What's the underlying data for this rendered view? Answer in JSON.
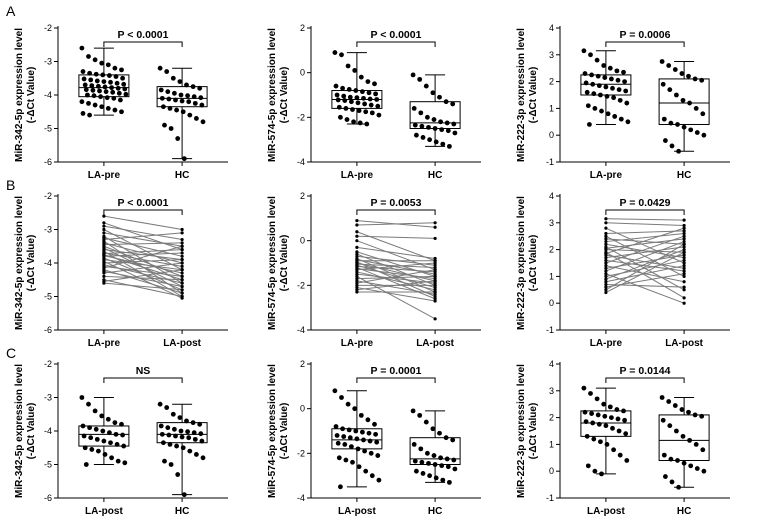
{
  "panel_labels": [
    "A",
    "B",
    "C"
  ],
  "chart_data": [
    {
      "type": "box",
      "row": 0,
      "col": 0,
      "ylabel": [
        "MiR-342-5p expression level",
        "(-ΔCt Value)"
      ],
      "ylim": [
        -6,
        -2
      ],
      "yticks": [
        -6,
        -5,
        -4,
        -3,
        -2
      ],
      "categories": [
        "LA-pre",
        "HC"
      ],
      "significance": "P < 0.0001",
      "series": [
        {
          "box": {
            "min": -4.6,
            "q1": -4.05,
            "median": -3.78,
            "q3": -3.4,
            "max": -2.6
          },
          "points": [
            -2.6,
            -2.85,
            -2.95,
            -3.05,
            -3.1,
            -3.2,
            -3.25,
            -3.3,
            -3.35,
            -3.38,
            -3.4,
            -3.42,
            -3.45,
            -3.5,
            -3.52,
            -3.55,
            -3.58,
            -3.6,
            -3.62,
            -3.65,
            -3.68,
            -3.7,
            -3.72,
            -3.74,
            -3.76,
            -3.78,
            -3.8,
            -3.82,
            -3.84,
            -3.86,
            -3.88,
            -3.9,
            -3.92,
            -3.95,
            -3.98,
            -4.0,
            -4.02,
            -4.05,
            -4.08,
            -4.1,
            -4.15,
            -4.2,
            -4.25,
            -4.3,
            -4.35,
            -4.4,
            -4.45,
            -4.5,
            -4.55,
            -4.6
          ]
        },
        {
          "box": {
            "min": -5.9,
            "q1": -4.35,
            "median": -4.1,
            "q3": -3.75,
            "max": -3.2
          },
          "points": [
            -3.2,
            -3.3,
            -3.5,
            -3.6,
            -3.7,
            -3.75,
            -3.8,
            -3.85,
            -3.9,
            -3.95,
            -4.0,
            -4.02,
            -4.05,
            -4.08,
            -4.1,
            -4.12,
            -4.15,
            -4.18,
            -4.2,
            -4.25,
            -4.3,
            -4.35,
            -4.4,
            -4.45,
            -4.5,
            -4.6,
            -4.7,
            -4.8,
            -4.9,
            -5.0,
            -5.3,
            -5.9
          ]
        }
      ]
    },
    {
      "type": "box",
      "row": 0,
      "col": 1,
      "ylabel": [
        "MiR-574-5p expression level",
        "(-ΔCt Value)"
      ],
      "ylim": [
        -4,
        2
      ],
      "yticks": [
        -4,
        -2,
        0,
        2
      ],
      "categories": [
        "LA-pre",
        "HC"
      ],
      "significance": "P < 0.0001",
      "series": [
        {
          "box": {
            "min": -2.3,
            "q1": -1.6,
            "median": -1.2,
            "q3": -0.8,
            "max": 0.9
          },
          "points": [
            0.9,
            0.8,
            0.3,
            0.1,
            -0.2,
            -0.4,
            -0.5,
            -0.6,
            -0.7,
            -0.75,
            -0.8,
            -0.85,
            -0.9,
            -0.95,
            -1.0,
            -1.05,
            -1.1,
            -1.12,
            -1.15,
            -1.18,
            -1.2,
            -1.22,
            -1.25,
            -1.3,
            -1.35,
            -1.4,
            -1.45,
            -1.5,
            -1.55,
            -1.6,
            -1.65,
            -1.7,
            -1.75,
            -1.8,
            -1.9,
            -2.0,
            -2.1,
            -2.2,
            -2.25,
            -2.3
          ]
        },
        {
          "box": {
            "min": -3.3,
            "q1": -2.5,
            "median": -2.25,
            "q3": -1.3,
            "max": -0.1
          },
          "points": [
            -0.1,
            -0.3,
            -0.6,
            -0.9,
            -1.1,
            -1.3,
            -1.4,
            -1.6,
            -1.8,
            -2.0,
            -2.1,
            -2.2,
            -2.25,
            -2.3,
            -2.35,
            -2.4,
            -2.45,
            -2.5,
            -2.55,
            -2.6,
            -2.7,
            -2.8,
            -2.9,
            -3.0,
            -3.1,
            -3.2,
            -3.3
          ]
        }
      ]
    },
    {
      "type": "box",
      "row": 0,
      "col": 2,
      "ylabel": [
        "MiR-222-3p expression level",
        "(-ΔCt Value)"
      ],
      "ylim": [
        -1,
        4
      ],
      "yticks": [
        -1,
        0,
        1,
        2,
        3,
        4
      ],
      "categories": [
        "LA-pre",
        "HC"
      ],
      "significance": "P = 0.0006",
      "series": [
        {
          "box": {
            "min": 0.4,
            "q1": 1.5,
            "median": 1.9,
            "q3": 2.25,
            "max": 3.15
          },
          "points": [
            3.15,
            3.0,
            2.8,
            2.6,
            2.5,
            2.4,
            2.35,
            2.3,
            2.25,
            2.2,
            2.15,
            2.1,
            2.05,
            2.0,
            1.95,
            1.9,
            1.85,
            1.8,
            1.75,
            1.7,
            1.65,
            1.6,
            1.55,
            1.5,
            1.45,
            1.4,
            1.3,
            1.2,
            1.1,
            1.0,
            0.9,
            0.8,
            0.7,
            0.6,
            0.5,
            0.4
          ]
        },
        {
          "box": {
            "min": -0.6,
            "q1": 0.4,
            "median": 1.2,
            "q3": 2.1,
            "max": 2.75
          },
          "points": [
            2.75,
            2.6,
            2.45,
            2.3,
            2.2,
            2.1,
            2.05,
            1.9,
            1.7,
            1.5,
            1.3,
            1.2,
            1.0,
            0.8,
            0.6,
            0.45,
            0.4,
            0.3,
            0.2,
            0.1,
            0.0,
            -0.2,
            -0.4,
            -0.6
          ]
        }
      ]
    },
    {
      "type": "paired_line",
      "row": 1,
      "col": 0,
      "ylabel": [
        "MiR-342-5p expression level",
        "(-ΔCt Value)"
      ],
      "ylim": [
        -6,
        -2
      ],
      "yticks": [
        -6,
        -5,
        -4,
        -3,
        -2
      ],
      "categories": [
        "LA-pre",
        "LA-post"
      ],
      "significance": "P < 0.0001",
      "pairs": [
        [
          -2.6,
          -3.0
        ],
        [
          -2.8,
          -3.6
        ],
        [
          -2.9,
          -3.3
        ],
        [
          -3.0,
          -4.2
        ],
        [
          -3.1,
          -3.5
        ],
        [
          -3.2,
          -4.6
        ],
        [
          -3.25,
          -3.8
        ],
        [
          -3.3,
          -3.1
        ],
        [
          -3.35,
          -4.9
        ],
        [
          -3.4,
          -4.0
        ],
        [
          -3.45,
          -3.4
        ],
        [
          -3.5,
          -4.4
        ],
        [
          -3.55,
          -4.7
        ],
        [
          -3.6,
          -3.9
        ],
        [
          -3.65,
          -5.0
        ],
        [
          -3.7,
          -4.1
        ],
        [
          -3.72,
          -3.6
        ],
        [
          -3.75,
          -4.5
        ],
        [
          -3.78,
          -4.3
        ],
        [
          -3.8,
          -3.7
        ],
        [
          -3.85,
          -4.8
        ],
        [
          -3.9,
          -4.2
        ],
        [
          -3.95,
          -5.05
        ],
        [
          -4.0,
          -3.9
        ],
        [
          -4.05,
          -4.6
        ],
        [
          -4.1,
          -4.4
        ],
        [
          -4.15,
          -3.5
        ],
        [
          -4.2,
          -4.9
        ],
        [
          -4.25,
          -4.7
        ],
        [
          -4.3,
          -4.0
        ],
        [
          -4.4,
          -4.5
        ],
        [
          -4.5,
          -5.0
        ],
        [
          -4.55,
          -4.2
        ],
        [
          -4.6,
          -4.8
        ]
      ]
    },
    {
      "type": "paired_line",
      "row": 1,
      "col": 1,
      "ylabel": [
        "MiR-574-5p expression level",
        "(-ΔCt Value)"
      ],
      "ylim": [
        -4,
        2
      ],
      "yticks": [
        -4,
        -2,
        0,
        2
      ],
      "categories": [
        "LA-pre",
        "LA-post"
      ],
      "significance": "P = 0.0053",
      "pairs": [
        [
          0.9,
          0.6
        ],
        [
          0.7,
          0.8
        ],
        [
          0.4,
          -0.9
        ],
        [
          0.2,
          0.1
        ],
        [
          0.0,
          -1.3
        ],
        [
          -0.3,
          -0.8
        ],
        [
          -0.5,
          -1.6
        ],
        [
          -0.6,
          -2.0
        ],
        [
          -0.7,
          -1.1
        ],
        [
          -0.8,
          -2.3
        ],
        [
          -0.85,
          -1.5
        ],
        [
          -0.9,
          -0.9
        ],
        [
          -0.95,
          -2.5
        ],
        [
          -1.0,
          -1.8
        ],
        [
          -1.05,
          -1.2
        ],
        [
          -1.1,
          -2.1
        ],
        [
          -1.15,
          -1.4
        ],
        [
          -1.2,
          -2.6
        ],
        [
          -1.25,
          -1.7
        ],
        [
          -1.3,
          -1.0
        ],
        [
          -1.4,
          -2.2
        ],
        [
          -1.5,
          -1.9
        ],
        [
          -1.6,
          -3.5
        ],
        [
          -1.7,
          -1.6
        ],
        [
          -1.8,
          -2.4
        ],
        [
          -1.9,
          -1.3
        ],
        [
          -2.0,
          -2.0
        ],
        [
          -2.1,
          -2.7
        ],
        [
          -2.2,
          -1.8
        ],
        [
          -2.3,
          -2.3
        ]
      ]
    },
    {
      "type": "paired_line",
      "row": 1,
      "col": 2,
      "ylabel": [
        "MiR-222-3p expression level",
        "(-ΔCt Value)"
      ],
      "ylim": [
        -1,
        4
      ],
      "yticks": [
        -1,
        0,
        1,
        2,
        3,
        4
      ],
      "categories": [
        "LA-pre",
        "LA-post"
      ],
      "significance": "P = 0.0429",
      "pairs": [
        [
          3.15,
          3.1
        ],
        [
          3.0,
          2.9
        ],
        [
          2.8,
          1.5
        ],
        [
          2.6,
          2.7
        ],
        [
          2.5,
          1.0
        ],
        [
          2.4,
          2.2
        ],
        [
          2.3,
          2.6
        ],
        [
          2.2,
          1.7
        ],
        [
          2.1,
          0.5
        ],
        [
          2.05,
          2.4
        ],
        [
          2.0,
          1.9
        ],
        [
          1.9,
          0.2
        ],
        [
          1.85,
          2.8
        ],
        [
          1.8,
          1.3
        ],
        [
          1.7,
          2.1
        ],
        [
          1.6,
          1.2
        ],
        [
          1.5,
          2.5
        ],
        [
          1.4,
          0.8
        ],
        [
          1.3,
          1.8
        ],
        [
          1.2,
          2.3
        ],
        [
          1.1,
          0.0
        ],
        [
          1.0,
          1.6
        ],
        [
          0.9,
          2.0
        ],
        [
          0.8,
          1.4
        ],
        [
          0.7,
          0.6
        ],
        [
          0.6,
          1.1
        ],
        [
          0.5,
          2.2
        ],
        [
          0.4,
          1.9
        ]
      ]
    },
    {
      "type": "box",
      "row": 2,
      "col": 0,
      "ylabel": [
        "MiR-342-5p expression level",
        "(-ΔCt Value)"
      ],
      "ylim": [
        -6,
        -2
      ],
      "yticks": [
        -6,
        -5,
        -4,
        -3,
        -2
      ],
      "categories": [
        "LA-post",
        "HC"
      ],
      "significance": "NS",
      "series": [
        {
          "box": {
            "min": -5.0,
            "q1": -4.45,
            "median": -4.1,
            "q3": -3.85,
            "max": -3.0
          },
          "points": [
            -3.0,
            -3.2,
            -3.4,
            -3.55,
            -3.65,
            -3.75,
            -3.8,
            -3.85,
            -3.9,
            -3.95,
            -4.0,
            -4.05,
            -4.1,
            -4.12,
            -4.15,
            -4.2,
            -4.25,
            -4.3,
            -4.35,
            -4.4,
            -4.45,
            -4.5,
            -4.55,
            -4.6,
            -4.7,
            -4.8,
            -4.9,
            -4.95,
            -5.0
          ]
        },
        {
          "box": {
            "min": -5.9,
            "q1": -4.35,
            "median": -4.1,
            "q3": -3.75,
            "max": -3.2
          },
          "points": [
            -3.2,
            -3.3,
            -3.5,
            -3.6,
            -3.7,
            -3.75,
            -3.8,
            -3.85,
            -3.9,
            -3.95,
            -4.0,
            -4.02,
            -4.05,
            -4.08,
            -4.1,
            -4.12,
            -4.15,
            -4.18,
            -4.2,
            -4.25,
            -4.3,
            -4.35,
            -4.4,
            -4.45,
            -4.5,
            -4.6,
            -4.7,
            -4.8,
            -4.9,
            -5.0,
            -5.3,
            -5.9
          ]
        }
      ]
    },
    {
      "type": "box",
      "row": 2,
      "col": 1,
      "ylabel": [
        "MiR-574-5p expression level",
        "(-ΔCt Value)"
      ],
      "ylim": [
        -4,
        2
      ],
      "yticks": [
        -4,
        -2,
        0,
        2
      ],
      "categories": [
        "LA-post",
        "HC"
      ],
      "significance": "P = 0.0001",
      "series": [
        {
          "box": {
            "min": -3.5,
            "q1": -1.8,
            "median": -1.4,
            "q3": -0.9,
            "max": 0.8
          },
          "points": [
            0.8,
            0.5,
            0.2,
            0.0,
            -0.3,
            -0.5,
            -0.7,
            -0.8,
            -0.9,
            -0.95,
            -1.0,
            -1.05,
            -1.1,
            -1.15,
            -1.2,
            -1.25,
            -1.3,
            -1.35,
            -1.4,
            -1.45,
            -1.5,
            -1.55,
            -1.6,
            -1.7,
            -1.8,
            -1.9,
            -2.0,
            -2.1,
            -2.2,
            -2.3,
            -2.4,
            -2.6,
            -2.8,
            -3.0,
            -3.2,
            -3.5
          ]
        },
        {
          "box": {
            "min": -3.3,
            "q1": -2.5,
            "median": -2.25,
            "q3": -1.3,
            "max": -0.1
          },
          "points": [
            -0.1,
            -0.3,
            -0.6,
            -0.9,
            -1.1,
            -1.3,
            -1.4,
            -1.6,
            -1.8,
            -2.0,
            -2.1,
            -2.2,
            -2.25,
            -2.3,
            -2.35,
            -2.4,
            -2.45,
            -2.5,
            -2.55,
            -2.6,
            -2.7,
            -2.8,
            -2.9,
            -3.0,
            -3.1,
            -3.2,
            -3.3
          ]
        }
      ]
    },
    {
      "type": "box",
      "row": 2,
      "col": 2,
      "ylabel": [
        "MiR-222-3p expression level",
        "(-ΔCt Value)"
      ],
      "ylim": [
        -1,
        4
      ],
      "yticks": [
        -1,
        0,
        1,
        2,
        3,
        4
      ],
      "categories": [
        "LA-post",
        "HC"
      ],
      "significance": "P = 0.0144",
      "series": [
        {
          "box": {
            "min": -0.1,
            "q1": 1.3,
            "median": 1.8,
            "q3": 2.25,
            "max": 3.1
          },
          "points": [
            3.1,
            2.9,
            2.7,
            2.5,
            2.4,
            2.3,
            2.25,
            2.2,
            2.15,
            2.1,
            2.05,
            2.0,
            1.95,
            1.9,
            1.85,
            1.8,
            1.75,
            1.7,
            1.6,
            1.5,
            1.4,
            1.3,
            1.2,
            1.1,
            1.0,
            0.8,
            0.6,
            0.4,
            0.2,
            0.0,
            -0.1
          ]
        },
        {
          "box": {
            "min": -0.6,
            "q1": 0.4,
            "median": 1.15,
            "q3": 2.1,
            "max": 2.75
          },
          "points": [
            2.75,
            2.6,
            2.45,
            2.3,
            2.2,
            2.1,
            2.05,
            1.9,
            1.7,
            1.5,
            1.3,
            1.15,
            1.0,
            0.8,
            0.6,
            0.45,
            0.4,
            0.3,
            0.2,
            0.1,
            0.0,
            -0.2,
            -0.4,
            -0.6
          ]
        }
      ]
    }
  ]
}
